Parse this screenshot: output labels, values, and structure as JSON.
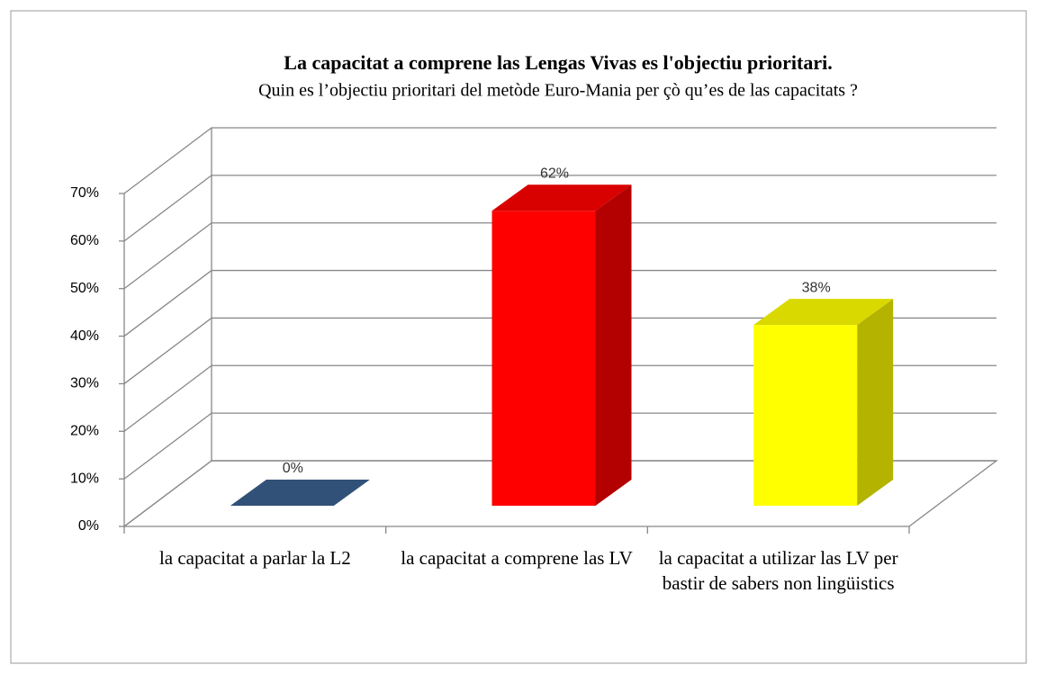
{
  "chart_data": {
    "type": "bar3d",
    "title": "La capacitat a comprene las Lengas Vivas es l'objectiu prioritari.",
    "subtitle": "Quin es l’objectiu prioritari del metòde Euro-Mania per çò qu’es de las capacitats  ?",
    "categories": [
      "la capacitat a parlar la L2",
      "la capacitat a comprene las LV",
      "la capacitat a utilizar las LV per bastir de sabers non lingüistics"
    ],
    "values": [
      0,
      62,
      38
    ],
    "value_labels": [
      "0%",
      "62%",
      "38%"
    ],
    "colors": [
      "#3b5f8e",
      "#ff0000",
      "#ffff00"
    ],
    "ylim": [
      0,
      70
    ],
    "yticks": [
      {
        "value": 0,
        "label": "0%"
      },
      {
        "value": 10,
        "label": "10%"
      },
      {
        "value": 20,
        "label": "20%"
      },
      {
        "value": 30,
        "label": "30%"
      },
      {
        "value": 40,
        "label": "40%"
      },
      {
        "value": 50,
        "label": "50%"
      },
      {
        "value": 60,
        "label": "60%"
      },
      {
        "value": 70,
        "label": "70%"
      }
    ],
    "grid": true
  }
}
